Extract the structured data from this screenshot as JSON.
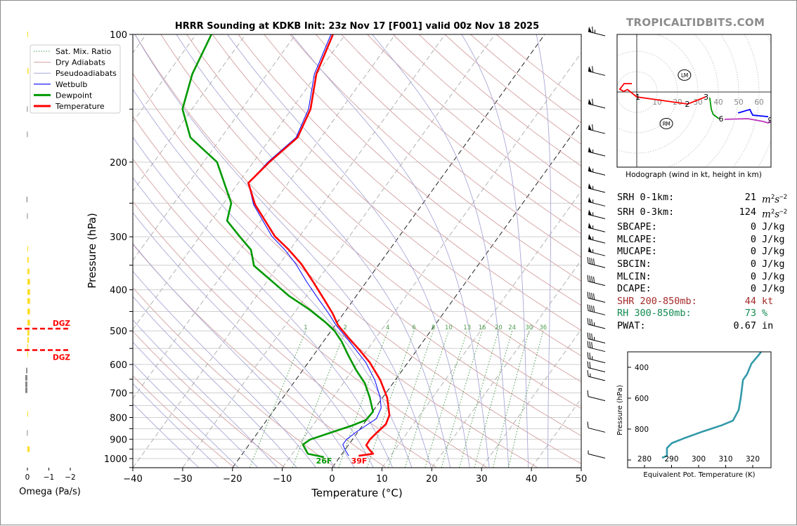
{
  "watermark": "TROPICALTIDBITS.COM",
  "colors": {
    "temperature": "#ff0000",
    "dewpoint": "#009900",
    "wetbulb": "#0000ff",
    "dry_adiabat": "#d4a0a0",
    "pseudoadiabat": "#a8a8d8",
    "mixing_ratio": "#4a9a4a",
    "theta_e": "#3399aa",
    "dgz": "#ff0000",
    "omega_up": "#ffdd22",
    "omega_down": "#888888",
    "shr": "#a52a2a",
    "rh": "#138a52"
  },
  "legend": [
    "Sat. Mix. Ratio",
    "Dry Adiabats",
    "Pseudoadiabats",
    "Wetbulb",
    "Dewpoint",
    "Temperature"
  ],
  "stats": [
    {
      "label": "SRH 0-1km:",
      "value": "21",
      "unit": "m",
      "unit_sup": "2",
      "unit2": "s",
      "unit2_sup": "−2",
      "color": "#000"
    },
    {
      "label": "SRH 0-3km:",
      "value": "124",
      "unit": "m",
      "unit_sup": "2",
      "unit2": "s",
      "unit2_sup": "−2",
      "color": "#000"
    },
    {
      "label": "SBCAPE:",
      "value": "0",
      "unit": "J/kg",
      "color": "#000"
    },
    {
      "label": "MLCAPE:",
      "value": "0",
      "unit": "J/kg",
      "color": "#000"
    },
    {
      "label": "MUCAPE:",
      "value": "0",
      "unit": "J/kg",
      "color": "#000"
    },
    {
      "label": "SBCIN:",
      "value": "0",
      "unit": "J/kg",
      "color": "#000"
    },
    {
      "label": "MLCIN:",
      "value": "0",
      "unit": "J/kg",
      "color": "#000"
    },
    {
      "label": "DCAPE:",
      "value": "0",
      "unit": "J/kg",
      "color": "#000"
    },
    {
      "label": "SHR 200-850mb:",
      "value": "44",
      "unit": "kt",
      "color": "#a52a2a"
    },
    {
      "label": "RH 300-850mb:",
      "value": "73",
      "unit": "%",
      "color": "#138a52"
    },
    {
      "label": "PWAT:",
      "value": "0.67",
      "unit": "in",
      "color": "#000"
    }
  ],
  "chart_data": [
    {
      "type": "line",
      "subtype": "skew-t",
      "title": "HRRR Sounding at KDKB Init: 23z Nov 17 [F001] valid 00z Nov 18 2025",
      "xlabel": "Temperature (°C)",
      "ylabel": "Pressure (hPa)",
      "xlim": [
        -40,
        50
      ],
      "ylim": [
        1050,
        100
      ],
      "yscale": "log",
      "grid": true,
      "legend_position": "top-left",
      "xticks": [
        "−40",
        "−30",
        "−20",
        "−10",
        "0",
        "10",
        "20",
        "30",
        "40",
        "50"
      ],
      "yticks": [
        "100",
        "200",
        "300",
        "400",
        "500",
        "600",
        "700",
        "800",
        "900",
        "1000"
      ],
      "mixing_ratio_labels": [
        "1",
        "2",
        "4",
        "6",
        "8",
        "10",
        "13",
        "16",
        "20",
        "24",
        "30",
        "36"
      ],
      "surface_labels": {
        "dewpoint": "26F",
        "temperature": "39F"
      },
      "series": [
        {
          "name": "Temperature",
          "points": [
            [
              100,
              -62.5
            ],
            [
              124,
              -60.1
            ],
            [
              150,
              -56.2
            ],
            [
              175,
              -54.7
            ],
            [
              200,
              -56.8
            ],
            [
              224,
              -58.0
            ],
            [
              252,
              -53.5
            ],
            [
              299,
              -45.0
            ],
            [
              322,
              -40.2
            ],
            [
              348,
              -35.6
            ],
            [
              383,
              -30.7
            ],
            [
              421,
              -26.0
            ],
            [
              454,
              -22.3
            ],
            [
              485,
              -19.4
            ],
            [
              519,
              -15.5
            ],
            [
              554,
              -11.6
            ],
            [
              593,
              -7.7
            ],
            [
              653,
              -3.0
            ],
            [
              718,
              0.9
            ],
            [
              790,
              3.9
            ],
            [
              830,
              4.5
            ],
            [
              868,
              3.9
            ],
            [
              902,
              3.5
            ],
            [
              930,
              3.6
            ],
            [
              955,
              5.0
            ],
            [
              974,
              6.2
            ],
            [
              985,
              3.6
            ]
          ]
        },
        {
          "name": "Dewpoint",
          "points": [
            [
              100,
              -86.9
            ],
            [
              124,
              -85.0
            ],
            [
              150,
              -81.9
            ],
            [
              175,
              -76.2
            ],
            [
              200,
              -67.3
            ],
            [
              250,
              -58.5
            ],
            [
              275,
              -56.8
            ],
            [
              299,
              -52.1
            ],
            [
              322,
              -47.8
            ],
            [
              351,
              -44.9
            ],
            [
              375,
              -40.3
            ],
            [
              413,
              -33.6
            ],
            [
              446,
              -27.3
            ],
            [
              477,
              -22.4
            ],
            [
              500,
              -19.3
            ],
            [
              529,
              -16.4
            ],
            [
              571,
              -13.0
            ],
            [
              616,
              -9.5
            ],
            [
              665,
              -5.6
            ],
            [
              718,
              -2.6
            ],
            [
              775,
              0.1
            ],
            [
              811,
              -0.1
            ],
            [
              836,
              -2.1
            ],
            [
              868,
              -5.3
            ],
            [
              902,
              -8.5
            ],
            [
              927,
              -9.2
            ],
            [
              974,
              -6.9
            ],
            [
              992,
              -3.2
            ]
          ]
        },
        {
          "name": "Wetbulb",
          "points": [
            [
              100,
              -62.9
            ],
            [
              124,
              -60.5
            ],
            [
              150,
              -56.6
            ],
            [
              175,
              -55.0
            ],
            [
              200,
              -57.1
            ],
            [
              224,
              -58.0
            ],
            [
              252,
              -53.8
            ],
            [
              299,
              -45.6
            ],
            [
              322,
              -41.0
            ],
            [
              348,
              -36.7
            ],
            [
              383,
              -32.0
            ],
            [
              421,
              -27.1
            ],
            [
              454,
              -23.1
            ],
            [
              485,
              -19.8
            ],
            [
              519,
              -15.9
            ],
            [
              554,
              -12.3
            ],
            [
              593,
              -8.5
            ],
            [
              653,
              -4.1
            ],
            [
              718,
              -0.5
            ],
            [
              760,
              1.2
            ],
            [
              805,
              1.8
            ],
            [
              836,
              0.7
            ],
            [
              868,
              -0.4
            ],
            [
              902,
              -1.2
            ],
            [
              927,
              -1.2
            ],
            [
              955,
              0.1
            ],
            [
              985,
              1.6
            ]
          ]
        }
      ],
      "dry_adiabats_theta_K": [
        250,
        260,
        270,
        280,
        290,
        300,
        310,
        320,
        330,
        340,
        350,
        360,
        370,
        380,
        390,
        400,
        410,
        420,
        430,
        440,
        450,
        460,
        470
      ],
      "mixing_ratio_gkg": [
        1,
        2,
        4,
        6,
        8,
        10,
        13,
        16,
        20,
        24,
        30,
        36
      ],
      "highlighted_isotherms": [
        0,
        -20
      ],
      "wind_barbs_kt": [
        [
          100,
          65
        ],
        [
          124,
          60
        ],
        [
          148,
          60
        ],
        [
          170,
          60
        ],
        [
          192,
          55
        ],
        [
          213,
          55
        ],
        [
          234,
          55
        ],
        [
          252,
          55
        ],
        [
          270,
          55
        ],
        [
          290,
          55
        ],
        [
          308,
          55
        ],
        [
          330,
          55
        ],
        [
          352,
          40
        ],
        [
          388,
          40
        ],
        [
          425,
          40
        ],
        [
          455,
          40
        ],
        [
          490,
          35
        ],
        [
          530,
          35
        ],
        [
          555,
          30
        ],
        [
          590,
          25
        ],
        [
          620,
          20
        ],
        [
          650,
          15
        ],
        [
          725,
          10
        ],
        [
          860,
          10
        ],
        [
          990,
          5
        ]
      ]
    },
    {
      "type": "bar",
      "subtype": "omega-profile",
      "xlabel": "Omega (Pa/s)",
      "xticks": [
        "0",
        "−1",
        "−2"
      ],
      "xlim": [
        0.5,
        -2
      ],
      "dgz_label": "DGZ",
      "dgz_pressure_hpa": [
        494,
        555
      ],
      "values": [
        [
          100,
          -0.03
        ],
        [
          122,
          -0.05
        ],
        [
          150,
          0.02
        ],
        [
          172,
          0.02
        ],
        [
          245,
          0.04
        ],
        [
          268,
          0.02
        ],
        [
          320,
          -0.03
        ],
        [
          340,
          -0.06
        ],
        [
          362,
          -0.09
        ],
        [
          383,
          -0.12
        ],
        [
          405,
          -0.12
        ],
        [
          425,
          -0.12
        ],
        [
          450,
          -0.12
        ],
        [
          478,
          -0.12
        ],
        [
          505,
          -0.09
        ],
        [
          525,
          -0.07
        ],
        [
          545,
          -0.03
        ],
        [
          568,
          -0.02
        ],
        [
          620,
          0.06
        ],
        [
          645,
          0.1
        ],
        [
          668,
          0.1
        ],
        [
          690,
          0.1
        ],
        [
          785,
          -0.02
        ],
        [
          870,
          0.02
        ],
        [
          950,
          -0.1
        ]
      ]
    },
    {
      "type": "line",
      "subtype": "hodograph",
      "xlabel": "Hodograph (wind in kt, height in km)",
      "ring_labels": [
        "10",
        "20",
        "30",
        "40",
        "50",
        "60"
      ],
      "segments": [
        {
          "color": "#ff0000",
          "points": [
            [
              -2.4,
              4.1
            ],
            [
              -6.2,
              4.1
            ],
            [
              -8.3,
              1.4
            ],
            [
              -6.5,
              0.3
            ],
            [
              -4.5,
              1.2
            ],
            [
              0,
              -2.4
            ],
            [
              25,
              -5.9
            ],
            [
              33.8,
              -2.4
            ]
          ]
        },
        {
          "color": "#009900",
          "points": [
            [
              35.8,
              -2.8
            ],
            [
              36.6,
              -8.6
            ],
            [
              37.5,
              -11.0
            ],
            [
              40.3,
              -13.1
            ]
          ]
        },
        {
          "color": "#bb33bb",
          "points": [
            [
              43.1,
              -13.4
            ],
            [
              54.5,
              -13.1
            ],
            [
              62.1,
              -14.5
            ],
            [
              64.5,
              -15.2
            ],
            [
              65.5,
              -14.0
            ]
          ]
        },
        {
          "color": "#0000ff",
          "points": [
            [
              49.7,
              -10.3
            ],
            [
              55.5,
              -8.6
            ],
            [
              56.9,
              -11.4
            ],
            [
              64.5,
              -12.1
            ]
          ]
        }
      ],
      "height_labels": [
        {
          "text": "1",
          "u": 0.5,
          "v": -2.4
        },
        {
          "text": "2",
          "u": 24.8,
          "v": -5.9
        },
        {
          "text": "3",
          "u": 34,
          "v": -2.4
        },
        {
          "text": "6",
          "u": 41.4,
          "v": -13.1
        },
        {
          "text": "9",
          "u": 65.5,
          "v": -13.8
        }
      ],
      "markers": [
        {
          "text": "LM",
          "u": 23.4,
          "v": 8.3
        },
        {
          "text": "RM",
          "u": 14.5,
          "v": -15.5
        }
      ]
    },
    {
      "type": "line",
      "subtype": "theta-e-profile",
      "xlabel": "Equivalent Pot. Temperature (K)",
      "ylabel": "Pressure (hPa)",
      "xticks": [
        "280",
        "290",
        "300",
        "310",
        "320"
      ],
      "yticks": [
        "400",
        "600",
        "800"
      ],
      "points": [
        [
          986,
          286.5
        ],
        [
          973,
          288.3
        ],
        [
          923,
          288.3
        ],
        [
          891,
          290.1
        ],
        [
          855,
          295.3
        ],
        [
          814,
          301.8
        ],
        [
          777,
          308.3
        ],
        [
          745,
          312.7
        ],
        [
          677,
          314.8
        ],
        [
          595,
          315.6
        ],
        [
          482,
          316.4
        ],
        [
          445,
          317.9
        ],
        [
          377,
          319.5
        ],
        [
          323,
          322.1
        ],
        [
          300,
          323.1
        ]
      ]
    }
  ]
}
